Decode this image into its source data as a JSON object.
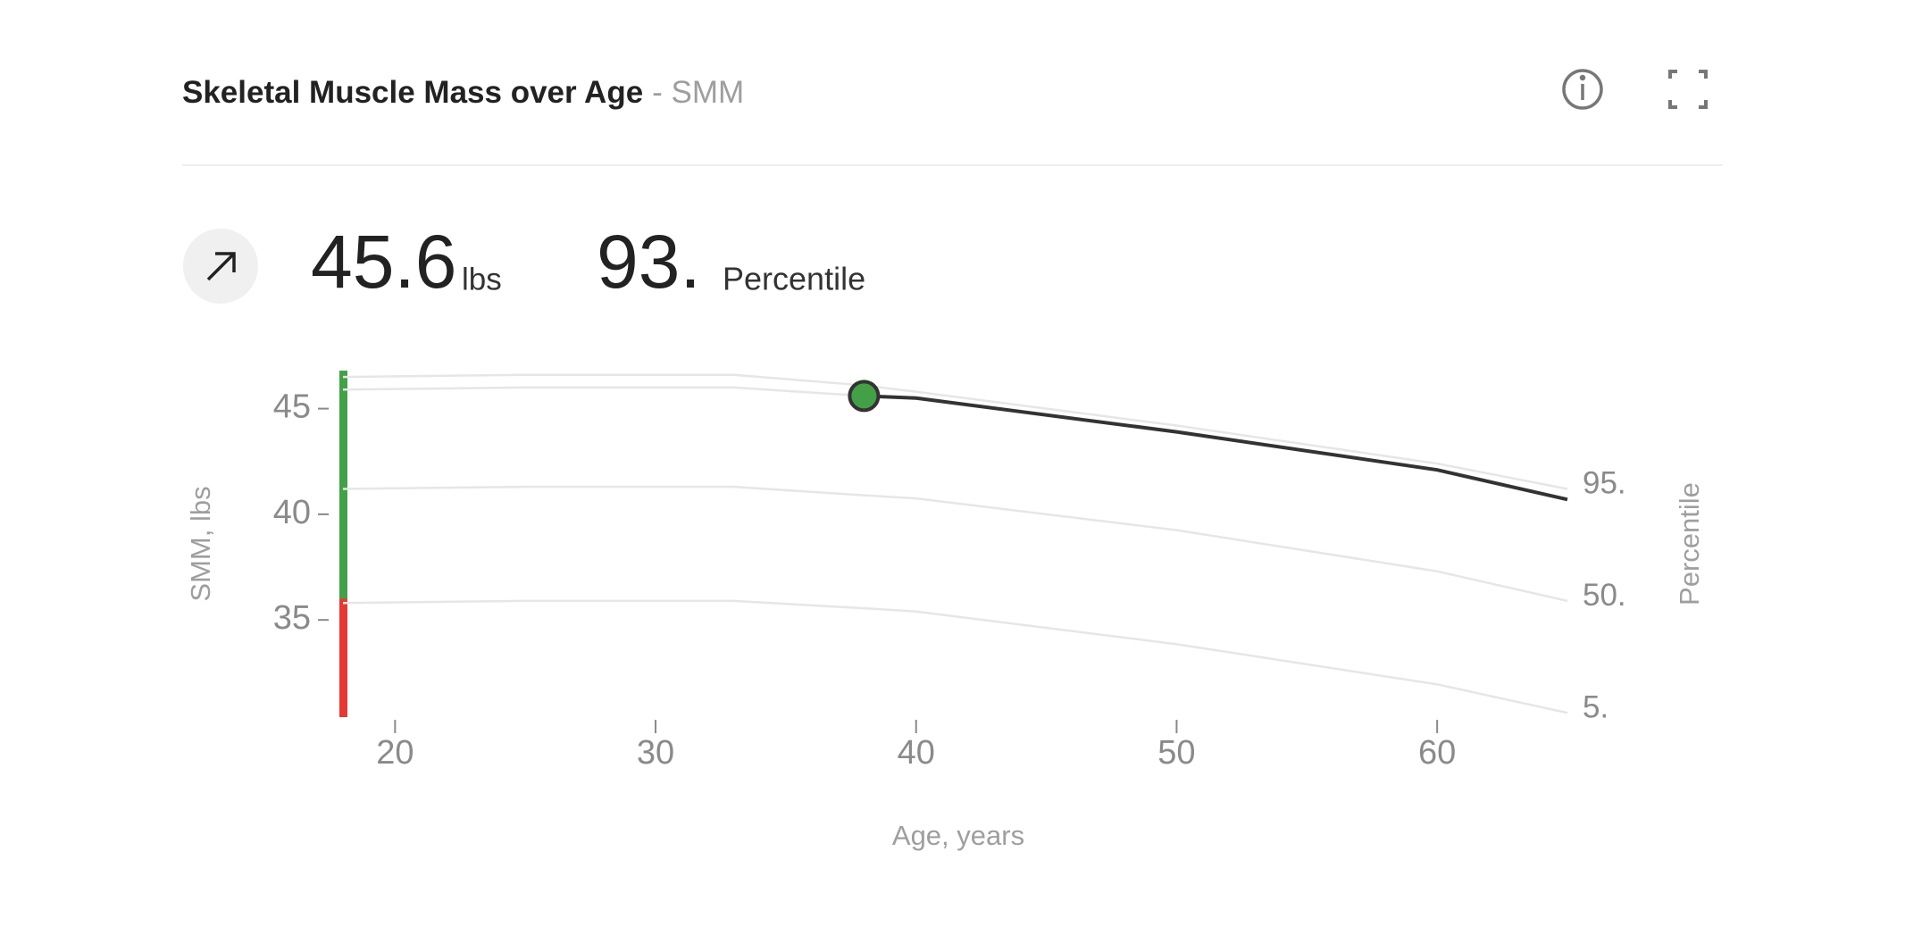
{
  "header": {
    "title": "Skeletal Muscle Mass over Age",
    "subtitle": "- SMM"
  },
  "summary": {
    "value": 45.6,
    "unit": "lbs",
    "percentile": "93.",
    "percentile_label": "Percentile"
  },
  "chart_data": {
    "type": "line",
    "x_label": "Age, years",
    "y_label": "SMM, lbs",
    "y2_label": "Percentile",
    "x": [
      18,
      25,
      33,
      38,
      40,
      50,
      60,
      65
    ],
    "xlim": [
      18,
      65
    ],
    "xticks": [
      20,
      30,
      40,
      50,
      60
    ],
    "ylim": [
      30.4,
      46.8
    ],
    "yticks": [
      35,
      40,
      45
    ],
    "ranges": [
      {
        "from": 30.4,
        "to": 36,
        "color": "#e53935"
      },
      {
        "from": 36,
        "to": 46.8,
        "color": "#43a047"
      }
    ],
    "series": [
      {
        "name": "95.",
        "color": "#e6e6e6",
        "values": [
          46.5,
          46.6,
          46.6,
          46.1,
          45.8,
          44.2,
          42.4,
          41.2
        ]
      },
      {
        "name": "50.",
        "color": "#e6e6e6",
        "values": [
          41.2,
          41.3,
          41.3,
          40.9,
          40.75,
          39.25,
          37.3,
          35.9
        ]
      },
      {
        "name": "5.",
        "color": "#e6e6e6",
        "values": [
          35.8,
          35.9,
          35.9,
          35.55,
          35.4,
          33.85,
          31.95,
          30.6
        ]
      },
      {
        "color": "#e6e6e6",
        "values": [
          45.9,
          46.0,
          46.0,
          45.6,
          null,
          null,
          null,
          null
        ]
      },
      {
        "color": "#333333",
        "marker_color": "#43a047",
        "values": [
          null,
          null,
          null,
          45.6,
          45.5,
          43.9,
          42.1,
          40.7
        ]
      }
    ]
  }
}
